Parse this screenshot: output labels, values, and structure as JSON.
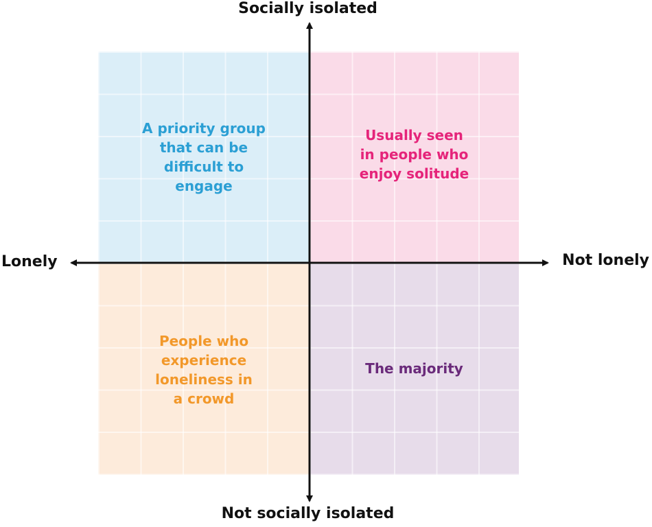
{
  "axes": {
    "top": "Socially isolated",
    "bottom": "Not socially isolated",
    "left": "Lonely",
    "right": "Not lonely"
  },
  "quadrants": {
    "top_left": {
      "text": "A priority group\nthat can be\ndifficult to\nengage",
      "text_color": "#2b9fd4",
      "fill": "#dbeef8"
    },
    "top_right": {
      "text": "Usually seen\nin people who\nenjoy solitude",
      "text_color": "#e5247a",
      "fill": "#fadbe8"
    },
    "bottom_left": {
      "text": "People who\nexperience\nloneliness in\na crowd",
      "text_color": "#f2982a",
      "fill": "#fdebdb"
    },
    "bottom_right": {
      "text": "The majority",
      "text_color": "#6a2a7a",
      "fill": "#e7dcea"
    }
  }
}
